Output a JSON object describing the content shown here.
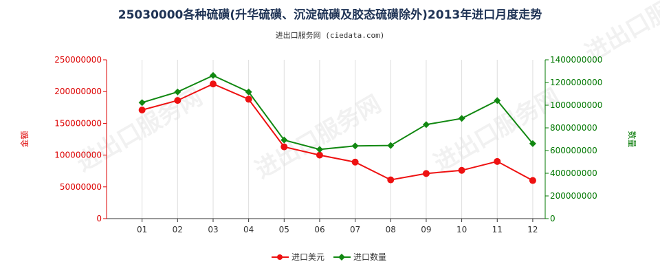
{
  "chart_data": {
    "type": "line",
    "title": "25030000各种硫磺(升华硫磺、沉淀硫磺及胶态硫磺除外)2013年进口月度走势",
    "subtitle": "进出口服务网 (ciedata.com)",
    "categories": [
      "01",
      "02",
      "03",
      "04",
      "05",
      "06",
      "07",
      "08",
      "09",
      "10",
      "11",
      "12"
    ],
    "y_left": {
      "label": "金额",
      "range": [
        0,
        250000000
      ],
      "ticks": [
        "0",
        "50000000",
        "100000000",
        "150000000",
        "200000000",
        "250000000"
      ],
      "color": "#dd0000"
    },
    "y_right": {
      "label": "数量",
      "range": [
        0,
        1400000000
      ],
      "ticks": [
        "0",
        "200000000",
        "400000000",
        "600000000",
        "800000000",
        "1000000000",
        "1200000000",
        "1400000000"
      ],
      "color": "#007700"
    },
    "series": [
      {
        "name": "进口美元",
        "axis": "left",
        "color": "#ee1111",
        "marker": "circle",
        "values": [
          171000000,
          186000000,
          212000000,
          188000000,
          113000000,
          100000000,
          89000000,
          61000000,
          71000000,
          76000000,
          90000000,
          60000000
        ]
      },
      {
        "name": "进口数量",
        "axis": "right",
        "color": "#118811",
        "marker": "diamond",
        "values": [
          1023000000,
          1117000000,
          1262000000,
          1117000000,
          693000000,
          610000000,
          641000000,
          645000000,
          829000000,
          883000000,
          1041000000,
          661000000
        ]
      }
    ],
    "grid": "vertical",
    "legend_position": "bottom-center",
    "watermark": "进出口服务网"
  }
}
